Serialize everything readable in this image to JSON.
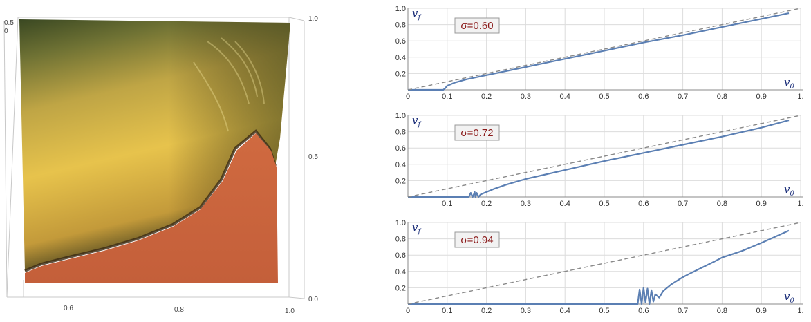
{
  "surface_plot": {
    "x_ticks": [
      "0.6",
      "0.8",
      "1.0"
    ],
    "z_ticks": [
      "0.0",
      "0.5",
      "1.0"
    ],
    "back_ticks": [
      "0.5",
      "0"
    ],
    "colors": {
      "dark_top": "#3c4a22",
      "yellow": "#e3c04a",
      "orange": "#c9643d",
      "frame": "#c8c8c8"
    }
  },
  "chart_data": [
    {
      "type": "line",
      "annotation": "σ=0.60",
      "sigma": 0.6,
      "xlabel": "v0",
      "ylabel": "vf",
      "xlim": [
        0,
        1.0
      ],
      "ylim": [
        0,
        1.0
      ],
      "x_ticks": [
        "0",
        "0.1",
        "0.2",
        "0.3",
        "0.4",
        "0.5",
        "0.6",
        "0.7",
        "0.8",
        "0.9",
        "1."
      ],
      "y_ticks": [
        "0.2",
        "0.4",
        "0.6",
        "0.8",
        "1.0"
      ],
      "grid": true,
      "series": [
        {
          "style": "solid",
          "color": "#5b7fb3",
          "x": [
            0.0,
            0.09,
            0.095,
            0.1,
            0.12,
            0.15,
            0.2,
            0.3,
            0.4,
            0.5,
            0.6,
            0.7,
            0.8,
            0.9,
            0.97
          ],
          "y": [
            0.0,
            0.0,
            0.02,
            0.05,
            0.09,
            0.13,
            0.18,
            0.28,
            0.38,
            0.48,
            0.58,
            0.67,
            0.77,
            0.87,
            0.94
          ]
        },
        {
          "style": "dashed",
          "color": "#888888",
          "x": [
            0.0,
            1.0
          ],
          "y": [
            0.0,
            1.0
          ]
        }
      ]
    },
    {
      "type": "line",
      "annotation": "σ=0.72",
      "sigma": 0.72,
      "xlabel": "v0",
      "ylabel": "vf",
      "xlim": [
        0,
        1.0
      ],
      "ylim": [
        0,
        1.0
      ],
      "x_ticks": [
        "0.1",
        "0.2",
        "0.3",
        "0.4",
        "0.5",
        "0.6",
        "0.7",
        "0.8",
        "0.9",
        "1."
      ],
      "y_ticks": [
        "0.2",
        "0.4",
        "0.6",
        "0.8",
        "1.0"
      ],
      "grid": true,
      "series": [
        {
          "style": "solid",
          "color": "#5b7fb3",
          "x": [
            0.0,
            0.155,
            0.16,
            0.165,
            0.17,
            0.172,
            0.175,
            0.18,
            0.185,
            0.19,
            0.2,
            0.22,
            0.25,
            0.3,
            0.4,
            0.5,
            0.6,
            0.7,
            0.8,
            0.9,
            0.97
          ],
          "y": [
            0.0,
            0.0,
            0.05,
            0.0,
            0.06,
            0.0,
            0.05,
            0.0,
            0.03,
            0.04,
            0.06,
            0.1,
            0.15,
            0.22,
            0.33,
            0.44,
            0.54,
            0.64,
            0.74,
            0.85,
            0.94
          ]
        },
        {
          "style": "dashed",
          "color": "#888888",
          "x": [
            0.0,
            1.0
          ],
          "y": [
            0.0,
            1.0
          ]
        }
      ]
    },
    {
      "type": "line",
      "annotation": "σ=0.94",
      "sigma": 0.94,
      "xlabel": "v0",
      "ylabel": "vf",
      "xlim": [
        0,
        1.0
      ],
      "ylim": [
        0,
        1.0
      ],
      "x_ticks": [
        "0",
        "0.1",
        "0.2",
        "0.3",
        "0.4",
        "0.5",
        "0.6",
        "0.7",
        "0.8",
        "0.9",
        "1."
      ],
      "y_ticks": [
        "0.2",
        "0.4",
        "0.6",
        "0.8",
        "1.0"
      ],
      "grid": true,
      "series": [
        {
          "style": "solid",
          "color": "#5b7fb3",
          "x": [
            0.0,
            0.585,
            0.59,
            0.595,
            0.6,
            0.605,
            0.61,
            0.615,
            0.62,
            0.625,
            0.63,
            0.64,
            0.65,
            0.67,
            0.7,
            0.72,
            0.75,
            0.78,
            0.8,
            0.85,
            0.9,
            0.97
          ],
          "y": [
            0.0,
            0.0,
            0.18,
            0.0,
            0.2,
            0.02,
            0.19,
            0.0,
            0.17,
            0.03,
            0.12,
            0.08,
            0.16,
            0.24,
            0.33,
            0.38,
            0.45,
            0.52,
            0.57,
            0.65,
            0.75,
            0.9
          ]
        },
        {
          "style": "dashed",
          "color": "#888888",
          "x": [
            0.0,
            1.0
          ],
          "y": [
            0.0,
            1.0
          ]
        }
      ]
    }
  ]
}
